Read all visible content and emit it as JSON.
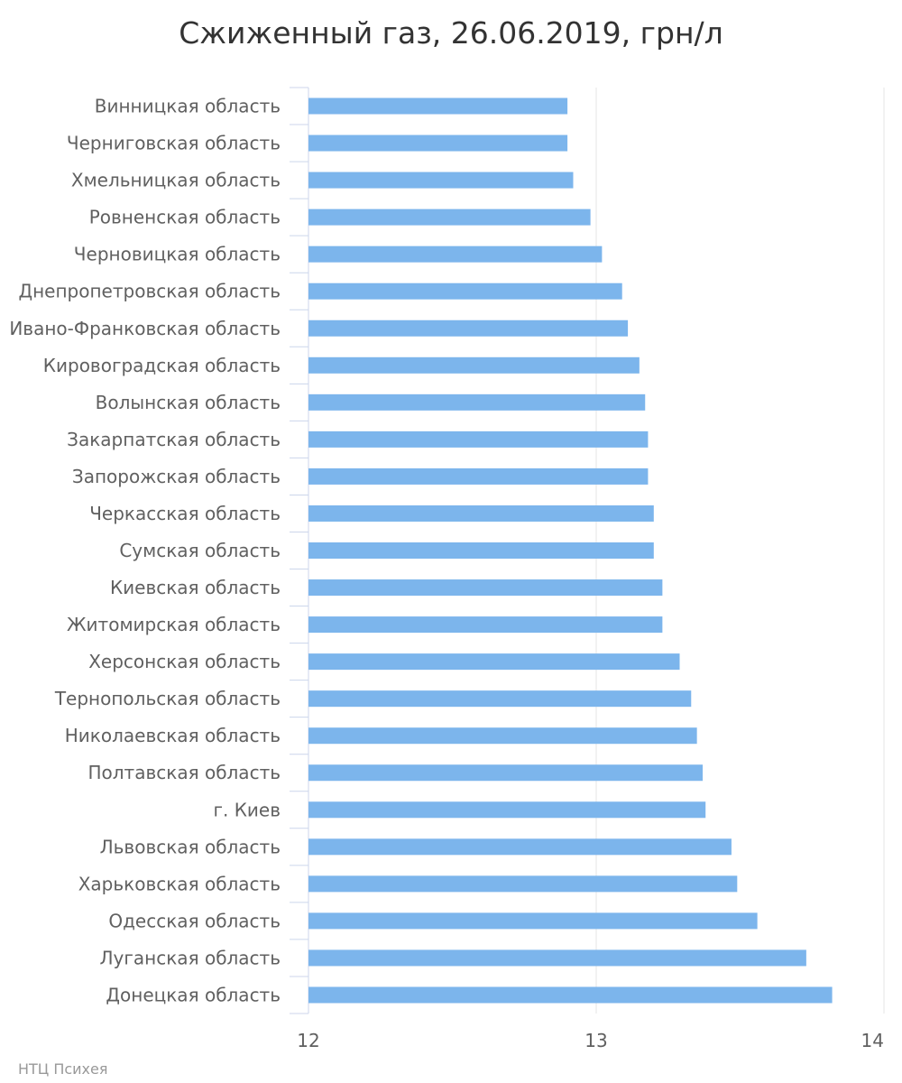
{
  "chart_data": {
    "type": "bar",
    "orientation": "horizontal",
    "title": "Сжиженный газ, 26.06.2019, грн/л",
    "xlim": [
      12,
      14
    ],
    "ticks": [
      "12",
      "13",
      "14"
    ],
    "grid": true,
    "bar_color": "#7cb5ec",
    "categories": [
      "Винницкая область",
      "Черниговская область",
      "Хмельницкая область",
      "Ровненская область",
      "Черновицкая область",
      "Днепропетровская область",
      "Ивано-Франковская область",
      "Кировоградская область",
      "Волынская область",
      "Закарпатская область",
      "Запорожская область",
      "Черкасская область",
      "Сумская область",
      "Киевская область",
      "Житомирская область",
      "Херсонская область",
      "Тернопольская область",
      "Николаевская область",
      "Полтавская область",
      "г. Киев",
      "Львовская область",
      "Харьковская область",
      "Одесская область",
      "Луганская область",
      "Донецкая область"
    ],
    "values": [
      12.9,
      12.9,
      12.92,
      12.98,
      13.02,
      13.09,
      13.11,
      13.15,
      13.17,
      13.18,
      13.18,
      13.2,
      13.2,
      13.23,
      13.23,
      13.29,
      13.33,
      13.35,
      13.37,
      13.38,
      13.47,
      13.49,
      13.56,
      13.73,
      13.82
    ]
  },
  "credit": "НТЦ Психея"
}
